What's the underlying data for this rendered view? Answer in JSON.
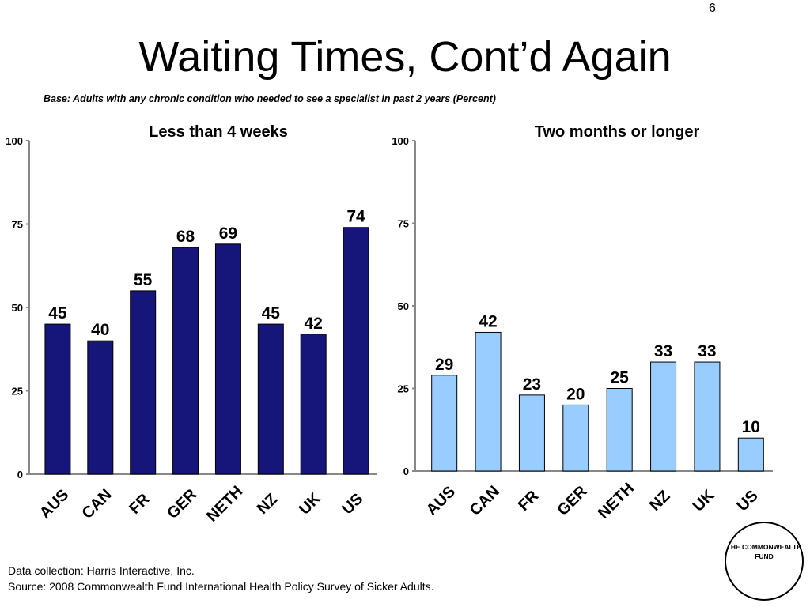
{
  "slide": {
    "page_number": "6",
    "title": "Waiting Times, Cont’d Again",
    "base_note": "Base: Adults with any chronic condition who needed to see a specialist in past 2 years (Percent)"
  },
  "footer": {
    "line1": "Data collection: Harris Interactive, Inc.",
    "line2": "Source: 2008 Commonwealth Fund International Health Policy Survey of Sicker Adults."
  },
  "logo": {
    "line1": "THE COMMONWEALTH",
    "line2": "FUND"
  },
  "chart_data": [
    {
      "type": "bar",
      "title": "Less than 4 weeks",
      "categories": [
        "AUS",
        "CAN",
        "FR",
        "GER",
        "NETH",
        "NZ",
        "UK",
        "US"
      ],
      "values": [
        45,
        40,
        55,
        68,
        69,
        45,
        42,
        74
      ],
      "ylim": [
        0,
        100
      ],
      "yticks": [
        "0",
        "25",
        "50",
        "75",
        "100"
      ],
      "color": "#15157A",
      "grid": false
    },
    {
      "type": "bar",
      "title": "Two months or longer",
      "categories": [
        "AUS",
        "CAN",
        "FR",
        "GER",
        "NETH",
        "NZ",
        "UK",
        "US"
      ],
      "values": [
        29,
        42,
        23,
        20,
        25,
        33,
        33,
        10
      ],
      "ylim": [
        0,
        100
      ],
      "yticks": [
        "0",
        "25",
        "50",
        "75",
        "100"
      ],
      "color": "#99CCFF",
      "grid": false
    }
  ]
}
